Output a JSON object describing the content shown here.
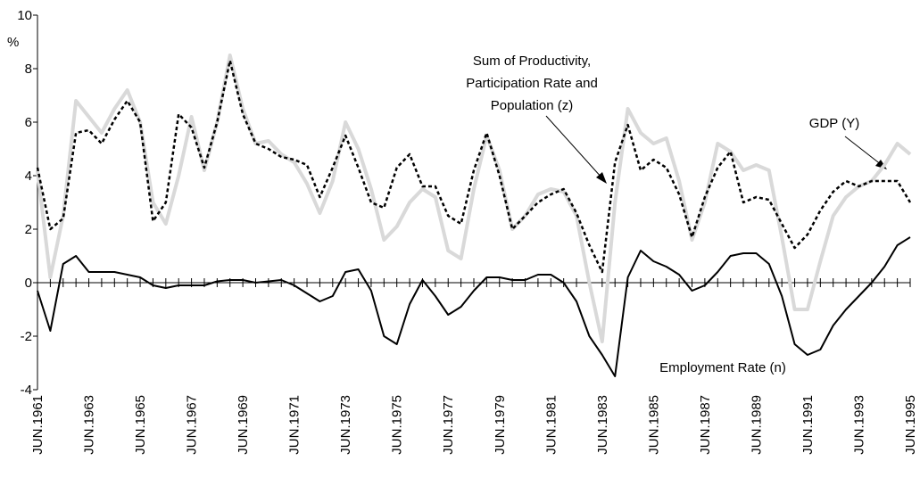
{
  "chart_data": {
    "type": "line",
    "y_label": "%",
    "categories": [
      "JUN.1961",
      null,
      null,
      null,
      "JUN.1963",
      null,
      null,
      null,
      "JUN.1965",
      null,
      null,
      null,
      "JUN.1967",
      null,
      null,
      null,
      "JUN.1969",
      null,
      null,
      null,
      "JUN.1971",
      null,
      null,
      null,
      "JUN.1973",
      null,
      null,
      null,
      "JUN.1975",
      null,
      null,
      null,
      "JUN.1977",
      null,
      null,
      null,
      "JUN.1979",
      null,
      null,
      null,
      "JUN.1981",
      null,
      null,
      null,
      "JUN.1983",
      null,
      null,
      null,
      "JUN.1985",
      null,
      null,
      null,
      "JUN.1987",
      null,
      null,
      null,
      "JUN.1989",
      null,
      null,
      null,
      "JUN.1991",
      null,
      null,
      null,
      "JUN.1993",
      null,
      null,
      null,
      "JUN.1995"
    ],
    "ylim": [
      -4,
      10
    ],
    "yticks": [
      -4,
      -2,
      0,
      2,
      4,
      6,
      8,
      10
    ],
    "series": [
      {
        "name": "GDP  (Y)",
        "color": "#d9d9d9",
        "width": 4,
        "dashed": false,
        "values": [
          4.2,
          0.2,
          2.5,
          6.8,
          6.2,
          5.6,
          6.5,
          7.2,
          6.0,
          3.0,
          2.2,
          4.0,
          6.2,
          4.2,
          6.0,
          8.5,
          6.5,
          5.2,
          5.3,
          4.8,
          4.5,
          3.7,
          2.6,
          3.8,
          6.0,
          5.0,
          3.5,
          1.6,
          2.1,
          3.0,
          3.5,
          3.2,
          1.2,
          0.9,
          3.5,
          5.5,
          4.2,
          2.0,
          2.5,
          3.3,
          3.5,
          3.4,
          2.5,
          0.0,
          -2.2,
          3.0,
          6.5,
          5.6,
          5.2,
          5.4,
          3.8,
          1.6,
          3.0,
          5.2,
          4.9,
          4.2,
          4.4,
          4.2,
          1.7,
          -1.0,
          -1.0,
          0.8,
          2.5,
          3.2,
          3.6,
          3.8,
          4.4,
          5.2,
          4.8
        ]
      },
      {
        "name": "Sum of Productivity, Participation Rate and Population (z)",
        "color": "#000000",
        "width": 2.5,
        "dashed": true,
        "values": [
          4.3,
          2.0,
          2.4,
          5.6,
          5.7,
          5.2,
          6.1,
          6.8,
          6.0,
          2.3,
          3.0,
          6.3,
          5.8,
          4.3,
          6.0,
          8.3,
          6.3,
          5.2,
          5.0,
          4.7,
          4.6,
          4.4,
          3.2,
          4.3,
          5.5,
          4.3,
          3.0,
          2.8,
          4.3,
          4.8,
          3.6,
          3.6,
          2.5,
          2.2,
          4.2,
          5.6,
          4.0,
          2.0,
          2.5,
          3.0,
          3.3,
          3.5,
          2.6,
          1.4,
          0.4,
          4.5,
          5.9,
          4.2,
          4.6,
          4.3,
          3.3,
          1.7,
          3.2,
          4.3,
          4.9,
          3.0,
          3.2,
          3.1,
          2.2,
          1.3,
          1.8,
          2.7,
          3.4,
          3.8,
          3.6,
          3.8,
          3.8,
          3.8,
          3.0
        ]
      },
      {
        "name": "Employment Rate (n)",
        "color": "#000000",
        "width": 2,
        "dashed": false,
        "values": [
          -0.3,
          -1.8,
          0.7,
          1.0,
          0.4,
          0.4,
          0.4,
          0.3,
          0.2,
          -0.1,
          -0.2,
          -0.1,
          -0.1,
          -0.1,
          0.05,
          0.1,
          0.1,
          0.0,
          0.05,
          0.1,
          -0.1,
          -0.4,
          -0.7,
          -0.5,
          0.4,
          0.5,
          -0.3,
          -2.0,
          -2.3,
          -0.8,
          0.1,
          -0.5,
          -1.2,
          -0.9,
          -0.3,
          0.2,
          0.2,
          0.1,
          0.1,
          0.3,
          0.3,
          0.0,
          -0.7,
          -2.0,
          -2.7,
          -3.5,
          0.2,
          1.2,
          0.8,
          0.6,
          0.3,
          -0.3,
          -0.1,
          0.4,
          1.0,
          1.1,
          1.1,
          0.7,
          -0.5,
          -2.3,
          -2.7,
          -2.5,
          -1.6,
          -1.0,
          -0.5,
          0.0,
          0.6,
          1.4,
          1.7
        ]
      }
    ],
    "annotation_lines": [
      "Sum of Productivity,",
      "Participation Rate and",
      "Population (z)"
    ]
  }
}
